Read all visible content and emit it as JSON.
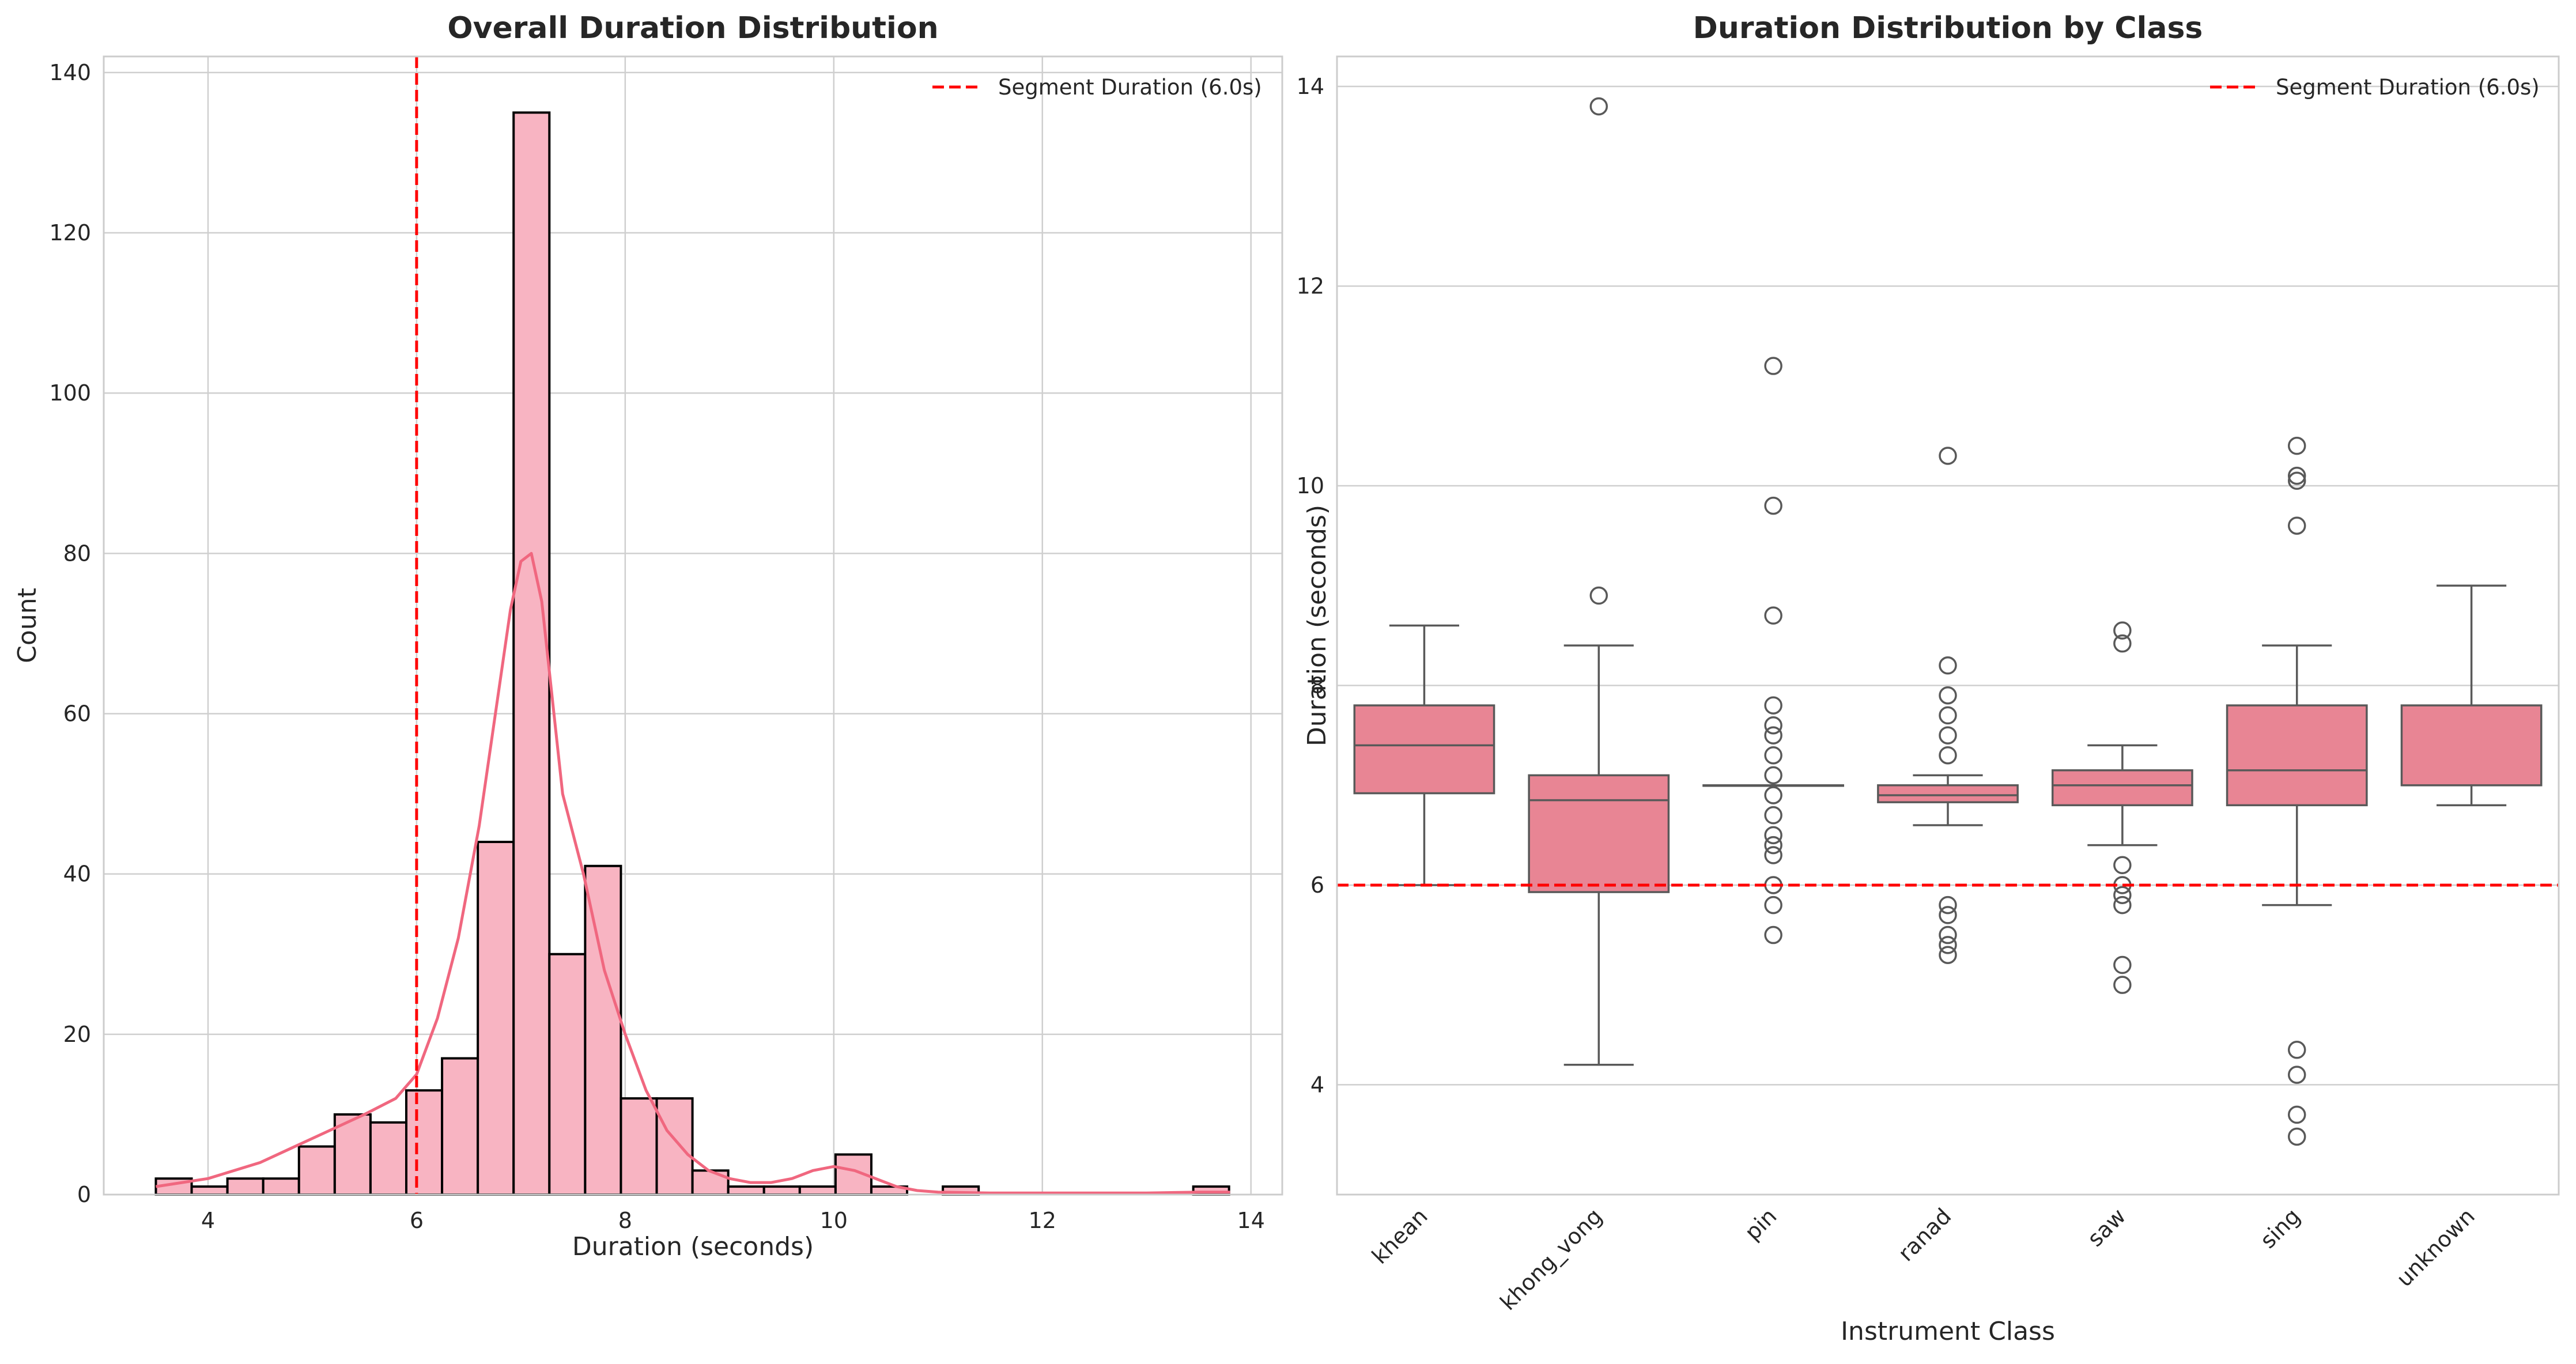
{
  "chart_data": [
    {
      "type": "histogram",
      "title": "Overall Duration Distribution",
      "xlabel": "Duration (seconds)",
      "ylabel": "Count",
      "xlim": [
        3.0,
        14.3
      ],
      "ylim": [
        0,
        142
      ],
      "xticks": [
        4,
        6,
        8,
        10,
        12,
        14
      ],
      "yticks": [
        0,
        20,
        40,
        60,
        80,
        100,
        120,
        140
      ],
      "grid": true,
      "bin_start": 3.5,
      "bin_width": 0.343,
      "counts": [
        2,
        1,
        2,
        2,
        6,
        10,
        9,
        13,
        17,
        44,
        135,
        30,
        41,
        12,
        12,
        3,
        1,
        1,
        1,
        5,
        1,
        0,
        1,
        0,
        0,
        0,
        0,
        0,
        0,
        1
      ],
      "bar_color": "#f8b4c2",
      "bar_edge_color": "#000000",
      "kde": {
        "color": "#f0677f",
        "x": [
          3.5,
          4.0,
          4.5,
          5.0,
          5.5,
          5.8,
          6.0,
          6.2,
          6.4,
          6.6,
          6.8,
          6.9,
          7.0,
          7.1,
          7.2,
          7.3,
          7.4,
          7.6,
          7.8,
          8.0,
          8.2,
          8.4,
          8.6,
          8.8,
          9.0,
          9.2,
          9.4,
          9.6,
          9.8,
          10.0,
          10.2,
          10.4,
          10.6,
          10.8,
          11.0,
          11.5,
          12.0,
          12.5,
          13.0,
          13.5,
          13.8
        ],
        "y": [
          1,
          2,
          4,
          7,
          10,
          12,
          15,
          22,
          32,
          46,
          64,
          73,
          79,
          80,
          74,
          62,
          50,
          40,
          28,
          20,
          13,
          8,
          5,
          3,
          2,
          1.5,
          1.5,
          2,
          3,
          3.5,
          3,
          2,
          1,
          0.5,
          0.3,
          0.2,
          0.2,
          0.2,
          0.2,
          0.3,
          0.3
        ]
      },
      "reference_line": {
        "x": 6.0,
        "color": "#ff0000",
        "label": "Segment Duration (6.0s)"
      },
      "legend": {
        "position": "top-right",
        "entries": [
          "Segment Duration (6.0s)"
        ]
      }
    },
    {
      "type": "boxplot",
      "title": "Duration Distribution by Class",
      "xlabel": "Instrument Class",
      "ylabel": "Duration (seconds)",
      "ylim": [
        2.9,
        14.3
      ],
      "yticks": [
        4,
        6,
        8,
        10,
        12,
        14
      ],
      "grid": true,
      "box_color": "#e88594",
      "box_edge_color": "#595959",
      "outlier_color": "#595959",
      "categories": [
        "khean",
        "khong_vong",
        "pin",
        "ranad",
        "saw",
        "sing",
        "unknown"
      ],
      "boxes": [
        {
          "q1": 6.92,
          "median": 7.4,
          "q3": 7.8,
          "whislo": 6.0,
          "whishi": 8.6,
          "fliers": []
        },
        {
          "q1": 5.93,
          "median": 6.85,
          "q3": 7.1,
          "whislo": 4.2,
          "whishi": 8.4,
          "fliers": [
            8.9,
            13.8
          ]
        },
        {
          "q1": 7.0,
          "median": 7.0,
          "q3": 7.0,
          "whislo": 7.0,
          "whishi": 7.0,
          "fliers": [
            11.2,
            9.8,
            8.7,
            7.8,
            7.6,
            7.5,
            7.3,
            7.1,
            6.9,
            6.7,
            6.5,
            6.4,
            6.3,
            6.0,
            5.8,
            5.5
          ]
        },
        {
          "q1": 6.83,
          "median": 6.9,
          "q3": 7.0,
          "whislo": 6.6,
          "whishi": 7.1,
          "fliers": [
            10.3,
            8.2,
            7.9,
            7.7,
            7.5,
            7.3,
            5.8,
            5.7,
            5.5,
            5.4,
            5.3
          ]
        },
        {
          "q1": 6.8,
          "median": 7.0,
          "q3": 7.15,
          "whislo": 6.4,
          "whishi": 7.4,
          "fliers": [
            8.55,
            8.42,
            6.2,
            6.0,
            5.9,
            5.8,
            5.2,
            5.0
          ]
        },
        {
          "q1": 6.8,
          "median": 7.15,
          "q3": 7.8,
          "whislo": 5.8,
          "whishi": 8.4,
          "fliers": [
            10.4,
            10.1,
            10.05,
            9.6,
            4.35,
            4.1,
            3.7,
            3.48
          ]
        },
        {
          "q1": 7.0,
          "median": 7.0,
          "q3": 7.8,
          "whislo": 6.8,
          "whishi": 9.0,
          "fliers": []
        }
      ],
      "reference_line": {
        "y": 6.0,
        "color": "#ff0000",
        "label": "Segment Duration (6.0s)"
      },
      "legend": {
        "position": "top-right",
        "entries": [
          "Segment Duration (6.0s)"
        ]
      }
    }
  ]
}
